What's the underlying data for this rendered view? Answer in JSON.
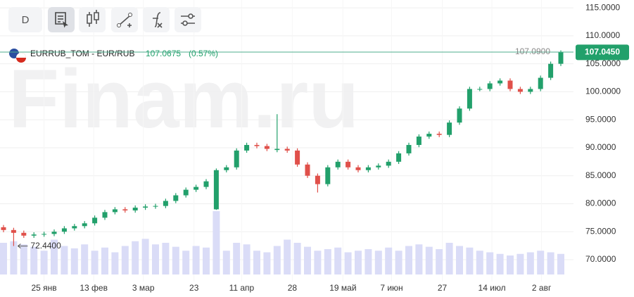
{
  "toolbar": {
    "interval": "D"
  },
  "watermark": "Finam.ru",
  "legend": {
    "symbol": "EURRUB_TOM - EUR/RUB",
    "price": "107.0675",
    "change": "(0.57%)"
  },
  "chart_data": {
    "type": "candlestick",
    "up_color": "#22a06b",
    "down_color": "#e0504a",
    "volume_color": "#dadcf7",
    "grid": true,
    "xlim": [
      0,
      55
    ],
    "xticks": [
      {
        "value": 4,
        "label": "25 янв"
      },
      {
        "value": 8.9,
        "label": "13 фев"
      },
      {
        "value": 13.8,
        "label": "3 мар"
      },
      {
        "value": 18.8,
        "label": "23"
      },
      {
        "value": 23.5,
        "label": "11 апр"
      },
      {
        "value": 28.5,
        "label": "28"
      },
      {
        "value": 33.5,
        "label": "19 май"
      },
      {
        "value": 38.3,
        "label": "7 июн"
      },
      {
        "value": 43.3,
        "label": "27"
      },
      {
        "value": 48.2,
        "label": "14 июл"
      },
      {
        "value": 53.1,
        "label": "2 авг"
      }
    ],
    "ylim": [
      66.1,
      116.4
    ],
    "yticks": [
      {
        "value": 70,
        "label": "70.0000"
      },
      {
        "value": 75,
        "label": "75.0000"
      },
      {
        "value": 80,
        "label": "80.0000"
      },
      {
        "value": 85,
        "label": "85.0000"
      },
      {
        "value": 90,
        "label": "90.0000"
      },
      {
        "value": 95,
        "label": "95.0000"
      },
      {
        "value": 100,
        "label": "100.0000"
      },
      {
        "value": 105,
        "label": "105.0000"
      },
      {
        "value": 110,
        "label": "110.0000"
      },
      {
        "value": 115,
        "label": "115.0000"
      }
    ],
    "open": [
      75.8,
      75.3,
      74.8,
      74.3,
      74.5,
      74.6,
      75,
      75.6,
      76,
      76.5,
      77.5,
      78.5,
      79,
      78.8,
      79.3,
      79.5,
      79.6,
      80.5,
      81.5,
      82.5,
      83,
      79,
      86,
      86.5,
      89.5,
      90.5,
      90.3,
      89.6,
      89.8,
      89.5,
      87,
      85,
      83.5,
      86.5,
      87.5,
      86.5,
      86,
      86.5,
      86.8,
      87.5,
      89,
      90.5,
      92,
      92.5,
      92.3,
      94.5,
      97,
      100.5,
      100.5,
      101.5,
      102,
      100.5,
      100,
      100.5,
      102.5,
      105
    ],
    "high": [
      76.2,
      75.7,
      75.2,
      74.9,
      75,
      75.4,
      76,
      76.4,
      76.9,
      77.9,
      78.9,
      79.4,
      79.4,
      79.7,
      79.9,
      80,
      80.9,
      81.9,
      82.9,
      83.4,
      84.4,
      86.3,
      86.9,
      89.9,
      90.9,
      90.9,
      90.7,
      96,
      90.2,
      89.9,
      87.4,
      85.4,
      86.9,
      87.9,
      87.9,
      86.9,
      86.9,
      87.2,
      87.9,
      89.4,
      90.9,
      92.4,
      92.9,
      92.9,
      94.9,
      97.4,
      100.9,
      100.9,
      101.9,
      102.4,
      102.4,
      100.9,
      100.9,
      102.9,
      105.4,
      107.4
    ],
    "low": [
      74.9,
      72.44,
      73.9,
      73.9,
      74.1,
      74.2,
      74.6,
      75.2,
      75.6,
      76.1,
      77.1,
      78.1,
      78.4,
      78.4,
      78.9,
      79.1,
      79.2,
      80.1,
      81.1,
      82.1,
      82.6,
      78.9,
      85.6,
      86.1,
      89.1,
      89.9,
      89.4,
      89.2,
      89.1,
      86.6,
      84.6,
      82,
      83.1,
      86.1,
      86.1,
      85.6,
      85.6,
      86.1,
      86.4,
      87.1,
      88.6,
      90.1,
      91.6,
      91.9,
      91.9,
      94.1,
      96.6,
      100.1,
      100.1,
      101.1,
      100.1,
      99.6,
      99.6,
      100.1,
      102.1,
      104.6
    ],
    "close": [
      75.3,
      74.8,
      74.3,
      74.5,
      74.6,
      75,
      75.6,
      76,
      76.5,
      77.5,
      78.5,
      79,
      78.8,
      79.3,
      79.5,
      79.6,
      80.5,
      81.5,
      82.5,
      83,
      84,
      86,
      86.5,
      89.5,
      90.5,
      90.3,
      89.8,
      89.8,
      89.5,
      87,
      85,
      83.5,
      86.5,
      87.5,
      86.5,
      86,
      86.5,
      86.8,
      87.5,
      89,
      90.5,
      92,
      92.5,
      92.3,
      94.5,
      97,
      100.5,
      100.5,
      101.5,
      102,
      100.5,
      100,
      100.5,
      102.5,
      105,
      107.045
    ],
    "volume": [
      40,
      42,
      38,
      35,
      30,
      44,
      36,
      33,
      38,
      30,
      34,
      28,
      36,
      42,
      45,
      38,
      40,
      35,
      30,
      36,
      34,
      80,
      30,
      40,
      38,
      30,
      28,
      36,
      44,
      40,
      35,
      30,
      32,
      34,
      28,
      30,
      32,
      30,
      34,
      30,
      36,
      38,
      35,
      32,
      40,
      36,
      34,
      30,
      28,
      26,
      24,
      26,
      28,
      30,
      28,
      26
    ],
    "price_line": {
      "value": 107.09,
      "label": "107.0900"
    },
    "last_price": {
      "value": 107.045,
      "label": "107.0450"
    },
    "low_marker": {
      "index": 1,
      "value": 72.44,
      "label": "72.4400"
    }
  }
}
